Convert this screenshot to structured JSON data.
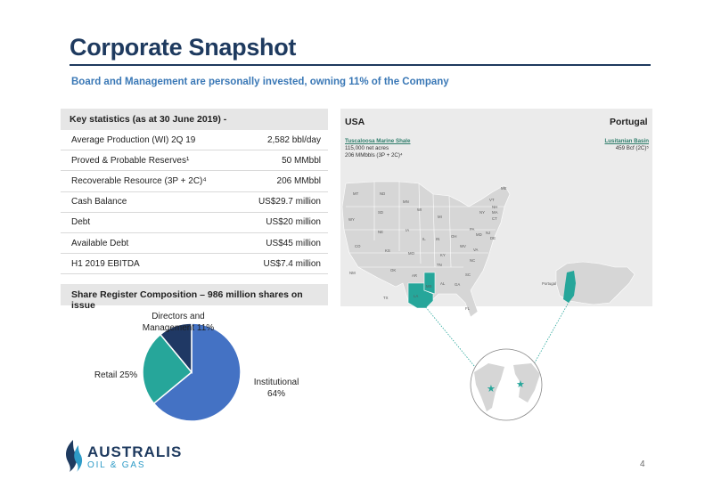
{
  "title": "Corporate Snapshot",
  "subtitle": "Board and Management are personally invested, owning 11% of the Company",
  "stats": {
    "heading": "Key statistics (as at 30 June 2019) -",
    "rows": [
      {
        "label": "Average Production (WI) 2Q 19",
        "value": "2,582 bbl/day"
      },
      {
        "label": "Proved & Probable Reserves¹",
        "value": "50 MMbbl"
      },
      {
        "label": "Recoverable Resource (3P + 2C)⁴",
        "value": "206 MMbbl"
      },
      {
        "label": "Cash Balance",
        "value": "US$29.7 million"
      },
      {
        "label": "Debt",
        "value": "US$20 million"
      },
      {
        "label": "Available Debt",
        "value": "US$45 million"
      },
      {
        "label": "H1 2019 EBITDA",
        "value": "US$7.4 million"
      }
    ]
  },
  "share_register": {
    "heading": "Share Register Composition – 986 million shares on issue"
  },
  "chart_data": {
    "type": "pie",
    "slices": [
      {
        "name": "Institutional",
        "value": 64,
        "label_line1": "Institutional",
        "label_line2": "64%",
        "color": "#4472c4"
      },
      {
        "name": "Retail",
        "value": 25,
        "label_line1": "Retail 25%",
        "color": "#26a69a"
      },
      {
        "name": "Directors and Management",
        "value": 11,
        "label_line1": "Directors and",
        "label_line2": "Management 11%",
        "color": "#1f3864"
      }
    ]
  },
  "map": {
    "usa_label": "USA",
    "portugal_label": "Portugal",
    "usa_note": {
      "heading": "Tuscaloosa Marine Shale",
      "line1": "115,000 net acres",
      "line2": "206 MMbbls (3P + 2C)⁴"
    },
    "portugal_note": {
      "heading": "Lusitanian Basin",
      "line1": "459 Bcf (2C)⁵"
    },
    "portugal_map_label": "Portugal",
    "states": [
      "WA",
      "MT",
      "ND",
      "MN",
      "WI",
      "MI",
      "NY",
      "VT",
      "NH",
      "ME",
      "MA",
      "CT",
      "NJ",
      "DE",
      "MD",
      "PA",
      "OH",
      "IN",
      "IL",
      "IA",
      "SD",
      "NE",
      "WY",
      "CO",
      "KS",
      "MO",
      "KY",
      "WV",
      "VA",
      "NC",
      "TN",
      "AR",
      "OK",
      "NM",
      "TX",
      "LA",
      "MS",
      "AL",
      "GA",
      "SC",
      "FL",
      "OR"
    ]
  },
  "logo": {
    "name": "AUSTRALIS",
    "sub": "OIL & GAS"
  },
  "page_number": "4",
  "colors": {
    "title": "#1e3a5f",
    "subtitle": "#3a78b6",
    "accent_teal": "#26a69a",
    "pie_institutional": "#4472c4",
    "pie_retail": "#26a69a",
    "pie_directors": "#1f3864"
  }
}
